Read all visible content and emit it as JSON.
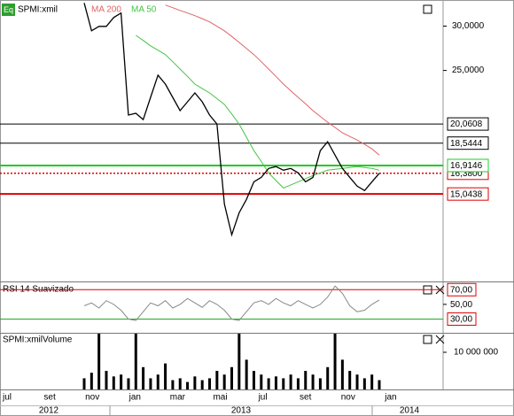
{
  "chart_data": {
    "type": "line",
    "icon": "Eq",
    "log_scale": true,
    "grid": false,
    "ylim": [
      10.5,
      33.4
    ],
    "yticks": [
      {
        "value": 30,
        "label": "30,0000"
      },
      {
        "value": 25,
        "label": "25,0000"
      }
    ],
    "series": [
      {
        "name": "SPMI:xmil",
        "color": "#000000",
        "values": [
          33.0,
          29.43,
          29.97,
          29.97,
          31.08,
          31.66,
          20.81,
          20.96,
          20.43,
          22.38,
          24.52,
          23.64,
          22.38,
          21.19,
          21.98,
          22.79,
          21.98,
          20.81,
          20.06,
          14.44,
          12.72,
          13.92,
          14.71,
          15.82,
          16.11,
          16.71,
          16.84,
          16.59,
          16.71,
          16.41,
          15.82,
          16.11,
          17.98,
          18.65,
          17.65,
          16.71,
          16.11,
          15.54,
          15.26,
          15.82,
          16.38
        ]
      },
      {
        "name": "MA 200",
        "color": "#e06464",
        "values": [
          null,
          null,
          null,
          null,
          null,
          null,
          null,
          null,
          null,
          null,
          null,
          32.72,
          32.36,
          32.0,
          31.66,
          31.32,
          30.93,
          30.53,
          29.98,
          29.43,
          28.75,
          28.06,
          27.37,
          26.68,
          25.92,
          25.15,
          24.4,
          23.64,
          23.0,
          22.38,
          21.8,
          21.19,
          20.7,
          20.21,
          19.78,
          19.34,
          19.06,
          18.78,
          18.45,
          18.11,
          17.65
        ]
      },
      {
        "name": "MA 50",
        "color": "#44c444",
        "values": [
          null,
          null,
          null,
          null,
          null,
          null,
          null,
          28.89,
          28.28,
          27.66,
          27.17,
          26.68,
          25.92,
          25.15,
          24.4,
          23.64,
          23.2,
          22.79,
          22.27,
          21.74,
          20.9,
          20.06,
          19.0,
          17.98,
          17.2,
          16.41,
          15.9,
          15.42,
          15.62,
          15.82,
          16.02,
          16.23,
          16.41,
          16.59,
          16.65,
          16.71,
          16.78,
          16.84,
          16.78,
          16.71,
          16.59
        ]
      }
    ],
    "levels": [
      {
        "value": 20.0608,
        "label": "20,0608",
        "color": "#000000",
        "style": "solid"
      },
      {
        "value": 18.5444,
        "label": "18,5444",
        "color": "#000000",
        "style": "solid"
      },
      {
        "value": 16.38,
        "label": "16,3800",
        "color": "#dd0000",
        "style": "dotted"
      },
      {
        "value": 16.9146,
        "label": "16,9146",
        "color": "#22cc22",
        "style": "thick"
      },
      {
        "value": 15.0438,
        "label": "15,0438",
        "color": "#dd0000",
        "style": "thick"
      }
    ],
    "x_labels": [
      "jul",
      "set",
      "nov",
      "jan",
      "mar",
      "mai",
      "jul",
      "set",
      "nov",
      "jan"
    ],
    "years": [
      "2012",
      "2013",
      "2014"
    ],
    "rsi": {
      "title": "RSI 14 Suavizado",
      "color": "#888888",
      "ylim": [
        11.25,
        80
      ],
      "yticks": [
        {
          "value": 70,
          "label": "70,00",
          "color": "#dd0000"
        },
        {
          "value": 50,
          "label": "50,00"
        },
        {
          "value": 30,
          "label": "30,00",
          "color": "#dd0000"
        }
      ],
      "values": [
        48,
        52,
        45,
        55,
        50,
        42,
        30,
        28,
        40,
        52,
        48,
        55,
        45,
        50,
        58,
        52,
        46,
        55,
        50,
        42,
        30,
        28,
        40,
        52,
        55,
        50,
        58,
        52,
        48,
        55,
        50,
        45,
        50,
        60,
        75,
        65,
        48,
        40,
        42,
        50,
        56
      ]
    },
    "volume": {
      "title": "SPMI:xmilVolume",
      "color": "#000000",
      "ylim": [
        0,
        15000000
      ],
      "yticks": [
        {
          "value": 10000000,
          "label": "10 000 000"
        }
      ],
      "values": [
        3000000,
        4500000,
        15000000,
        5000000,
        3500000,
        4000000,
        3000000,
        15000000,
        6000000,
        3000000,
        4000000,
        7000000,
        2500000,
        3000000,
        2000000,
        3500000,
        2500000,
        3000000,
        5000000,
        4000000,
        6000000,
        15000000,
        8000000,
        5000000,
        4000000,
        3000000,
        3500000,
        3000000,
        4000000,
        3000000,
        5000000,
        4000000,
        3000000,
        6000000,
        15000000,
        8000000,
        5000000,
        4000000,
        3000000,
        4000000,
        2500000
      ]
    }
  }
}
